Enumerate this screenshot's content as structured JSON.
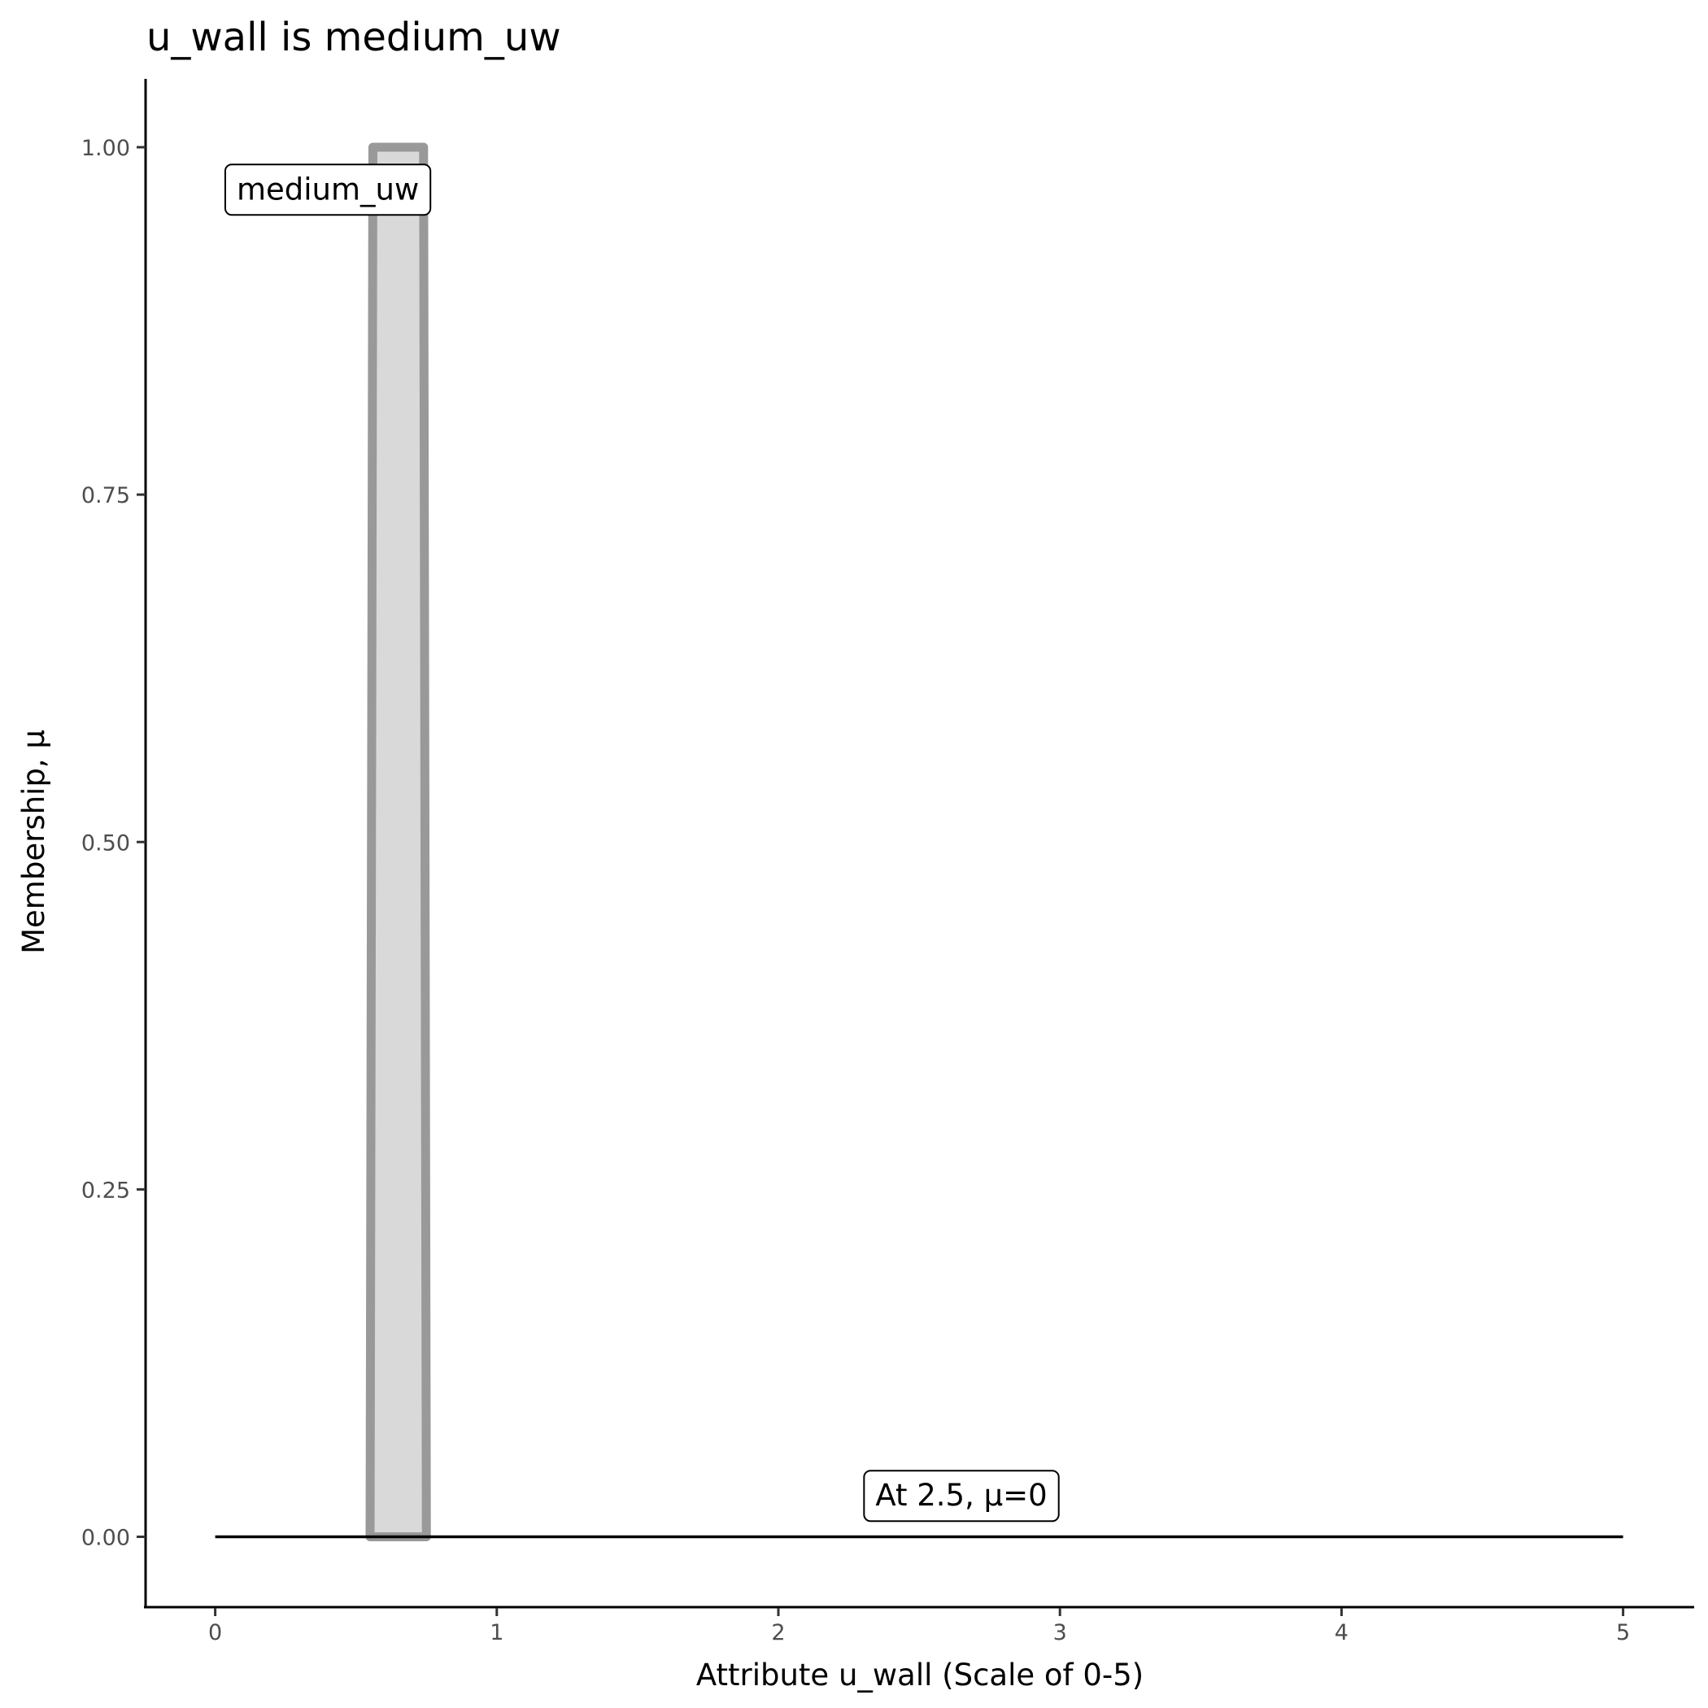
{
  "chart_data": {
    "type": "area",
    "title": "u_wall is medium_uw",
    "xlabel": "Attribute u_wall (Scale of 0-5)",
    "ylabel": "Membership, μ",
    "xlim": [
      -0.25,
      5.25
    ],
    "ylim": [
      -0.05,
      1.05
    ],
    "x_ticks": [
      "0",
      "1",
      "2",
      "3",
      "4",
      "5"
    ],
    "y_ticks": [
      "0.00",
      "0.25",
      "0.50",
      "0.75",
      "1.00"
    ],
    "grid": false,
    "series": [
      {
        "name": "medium_uw",
        "x": [
          0.55,
          0.56,
          0.74,
          0.75
        ],
        "y": [
          0,
          1,
          1,
          0
        ],
        "fill": "#d9d9d9",
        "stroke": "#999999"
      }
    ],
    "reference_line": {
      "x": [
        0,
        5
      ],
      "y": [
        0,
        0
      ],
      "color": "#000000"
    },
    "annotations": [
      {
        "text": "medium_uw",
        "x": 0.4,
        "y": 0.97
      },
      {
        "text": "At 2.5, μ=0",
        "x": 2.65,
        "y": 0.03
      }
    ]
  }
}
